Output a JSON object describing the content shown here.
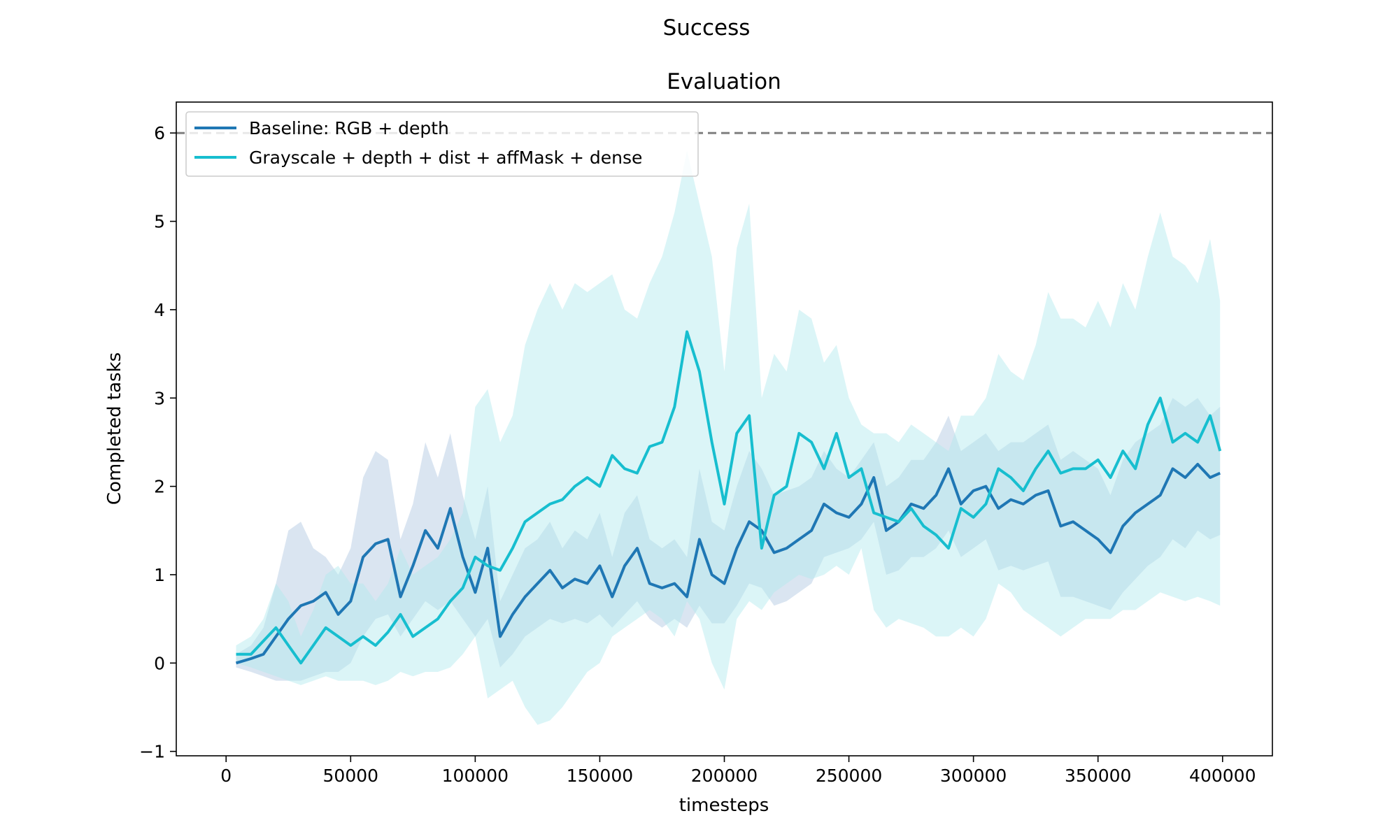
{
  "chart_data": {
    "type": "line",
    "suptitle": "Success",
    "title": "Evaluation",
    "xlabel": "timesteps",
    "ylabel": "Completed tasks",
    "xlim": [
      -20000,
      420000
    ],
    "ylim": [
      -1.05,
      6.35
    ],
    "xticks": [
      0,
      50000,
      100000,
      150000,
      200000,
      250000,
      300000,
      350000,
      400000
    ],
    "xtick_labels": [
      "0",
      "50000",
      "100000",
      "150000",
      "200000",
      "250000",
      "300000",
      "350000",
      "400000"
    ],
    "yticks": [
      -1,
      0,
      1,
      2,
      3,
      4,
      5,
      6
    ],
    "ytick_labels": [
      "−1",
      "0",
      "1",
      "2",
      "3",
      "4",
      "5",
      "6"
    ],
    "grid": false,
    "legend_position": "top-left",
    "reference_line": {
      "y": 6,
      "style": "dashed",
      "color": "#808080"
    },
    "series": [
      {
        "name": "Baseline: RGB + depth",
        "color": "#1f77b4",
        "band_color": "#aec6e0",
        "x": [
          4000,
          10000,
          15000,
          20000,
          25000,
          30000,
          35000,
          40000,
          45000,
          50000,
          55000,
          60000,
          65000,
          70000,
          75000,
          80000,
          85000,
          90000,
          95000,
          100000,
          105000,
          110000,
          115000,
          120000,
          125000,
          130000,
          135000,
          140000,
          145000,
          150000,
          155000,
          160000,
          165000,
          170000,
          175000,
          180000,
          185000,
          190000,
          195000,
          200000,
          205000,
          210000,
          215000,
          220000,
          225000,
          230000,
          235000,
          240000,
          245000,
          250000,
          255000,
          260000,
          265000,
          270000,
          275000,
          280000,
          285000,
          290000,
          295000,
          300000,
          305000,
          310000,
          315000,
          320000,
          325000,
          330000,
          335000,
          340000,
          345000,
          350000,
          355000,
          360000,
          365000,
          370000,
          375000,
          380000,
          385000,
          390000,
          395000,
          399000
        ],
        "values": [
          0.0,
          0.05,
          0.1,
          0.3,
          0.5,
          0.65,
          0.7,
          0.8,
          0.55,
          0.7,
          1.2,
          1.35,
          1.4,
          0.75,
          1.1,
          1.5,
          1.3,
          1.75,
          1.2,
          0.8,
          1.3,
          0.3,
          0.55,
          0.75,
          0.9,
          1.05,
          0.85,
          0.95,
          0.9,
          1.1,
          0.75,
          1.1,
          1.3,
          0.9,
          0.85,
          0.9,
          0.75,
          1.4,
          1.0,
          0.9,
          1.3,
          1.6,
          1.5,
          1.25,
          1.3,
          1.4,
          1.5,
          1.8,
          1.7,
          1.65,
          1.8,
          2.1,
          1.5,
          1.6,
          1.8,
          1.75,
          1.9,
          2.2,
          1.8,
          1.95,
          2.0,
          1.75,
          1.85,
          1.8,
          1.9,
          1.95,
          1.55,
          1.6,
          1.5,
          1.4,
          1.25,
          1.55,
          1.7,
          1.8,
          1.9,
          2.2,
          2.1,
          2.25,
          2.1,
          2.15
        ],
        "lower": [
          -0.05,
          -0.1,
          -0.15,
          -0.2,
          -0.2,
          -0.2,
          -0.15,
          -0.1,
          -0.1,
          0.0,
          0.3,
          0.5,
          0.55,
          0.3,
          0.5,
          0.7,
          0.6,
          0.7,
          0.5,
          0.3,
          0.5,
          -0.05,
          0.1,
          0.3,
          0.4,
          0.5,
          0.45,
          0.5,
          0.45,
          0.55,
          0.4,
          0.55,
          0.7,
          0.5,
          0.4,
          0.5,
          0.4,
          0.65,
          0.45,
          0.45,
          0.65,
          0.9,
          0.85,
          0.65,
          0.7,
          0.8,
          0.9,
          1.2,
          1.25,
          1.3,
          1.4,
          1.6,
          1.0,
          1.05,
          1.2,
          1.2,
          1.3,
          1.5,
          1.2,
          1.3,
          1.4,
          1.05,
          1.1,
          1.05,
          1.1,
          1.15,
          0.75,
          0.75,
          0.7,
          0.65,
          0.6,
          0.8,
          0.95,
          1.1,
          1.2,
          1.4,
          1.3,
          1.5,
          1.4,
          1.45
        ],
        "upper": [
          0.1,
          0.2,
          0.4,
          0.9,
          1.5,
          1.6,
          1.3,
          1.2,
          1.0,
          1.3,
          2.1,
          2.4,
          2.3,
          1.4,
          1.8,
          2.5,
          2.1,
          2.6,
          1.9,
          1.4,
          2.0,
          0.7,
          1.0,
          1.3,
          1.4,
          1.6,
          1.3,
          1.5,
          1.4,
          1.7,
          1.2,
          1.7,
          1.9,
          1.4,
          1.3,
          1.4,
          1.2,
          2.2,
          1.6,
          1.5,
          2.0,
          2.4,
          2.2,
          1.9,
          1.95,
          2.0,
          2.1,
          2.4,
          2.2,
          2.1,
          2.3,
          2.5,
          2.0,
          2.1,
          2.3,
          2.3,
          2.5,
          2.8,
          2.4,
          2.5,
          2.6,
          2.4,
          2.5,
          2.5,
          2.6,
          2.7,
          2.3,
          2.4,
          2.3,
          2.2,
          1.9,
          2.3,
          2.5,
          2.6,
          2.7,
          3.0,
          2.9,
          3.0,
          2.8,
          2.9
        ]
      },
      {
        "name": "Grayscale + depth + dist + affMask + dense",
        "color": "#17becf",
        "band_color": "#b0e8ee",
        "x": [
          4000,
          10000,
          15000,
          20000,
          25000,
          30000,
          35000,
          40000,
          45000,
          50000,
          55000,
          60000,
          65000,
          70000,
          75000,
          80000,
          85000,
          90000,
          95000,
          100000,
          105000,
          110000,
          115000,
          120000,
          125000,
          130000,
          135000,
          140000,
          145000,
          150000,
          155000,
          160000,
          165000,
          170000,
          175000,
          180000,
          185000,
          190000,
          195000,
          200000,
          205000,
          210000,
          215000,
          220000,
          225000,
          230000,
          235000,
          240000,
          245000,
          250000,
          255000,
          260000,
          265000,
          270000,
          275000,
          280000,
          285000,
          290000,
          295000,
          300000,
          305000,
          310000,
          315000,
          320000,
          325000,
          330000,
          335000,
          340000,
          345000,
          350000,
          355000,
          360000,
          365000,
          370000,
          375000,
          380000,
          385000,
          390000,
          395000,
          399000
        ],
        "values": [
          0.1,
          0.1,
          0.25,
          0.4,
          0.2,
          0.0,
          0.2,
          0.4,
          0.3,
          0.2,
          0.3,
          0.2,
          0.35,
          0.55,
          0.3,
          0.4,
          0.5,
          0.7,
          0.85,
          1.2,
          1.1,
          1.05,
          1.3,
          1.6,
          1.7,
          1.8,
          1.85,
          2.0,
          2.1,
          2.0,
          2.35,
          2.2,
          2.15,
          2.45,
          2.5,
          2.9,
          3.75,
          3.3,
          2.5,
          1.8,
          2.6,
          2.8,
          1.3,
          1.9,
          2.0,
          2.6,
          2.5,
          2.2,
          2.6,
          2.1,
          2.2,
          1.7,
          1.65,
          1.6,
          1.75,
          1.55,
          1.45,
          1.3,
          1.75,
          1.65,
          1.8,
          2.2,
          2.1,
          1.95,
          2.2,
          2.4,
          2.15,
          2.2,
          2.2,
          2.3,
          2.1,
          2.4,
          2.2,
          2.7,
          3.0,
          2.5,
          2.6,
          2.5,
          2.8,
          2.4
        ],
        "lower": [
          0.0,
          -0.05,
          -0.1,
          -0.15,
          -0.2,
          -0.25,
          -0.2,
          -0.15,
          -0.2,
          -0.2,
          -0.2,
          -0.25,
          -0.2,
          -0.1,
          -0.15,
          -0.1,
          -0.1,
          -0.05,
          0.1,
          0.3,
          -0.4,
          -0.3,
          -0.2,
          -0.5,
          -0.7,
          -0.65,
          -0.5,
          -0.3,
          -0.1,
          0.0,
          0.3,
          0.4,
          0.5,
          0.6,
          0.5,
          0.3,
          0.7,
          0.5,
          0.0,
          -0.3,
          0.5,
          0.7,
          0.6,
          0.8,
          0.9,
          1.0,
          0.95,
          1.0,
          1.1,
          1.0,
          1.3,
          0.6,
          0.4,
          0.5,
          0.45,
          0.4,
          0.3,
          0.3,
          0.4,
          0.3,
          0.5,
          0.9,
          0.8,
          0.6,
          0.5,
          0.4,
          0.3,
          0.4,
          0.5,
          0.5,
          0.5,
          0.6,
          0.6,
          0.7,
          0.8,
          0.75,
          0.7,
          0.75,
          0.7,
          0.65
        ],
        "upper": [
          0.2,
          0.3,
          0.5,
          0.9,
          0.7,
          0.3,
          0.6,
          1.0,
          1.1,
          0.9,
          0.9,
          0.7,
          0.9,
          1.3,
          1.0,
          1.1,
          1.2,
          1.4,
          1.7,
          2.9,
          3.1,
          2.5,
          2.8,
          3.6,
          4.0,
          4.3,
          4.0,
          4.3,
          4.2,
          4.3,
          4.4,
          4.0,
          3.9,
          4.3,
          4.6,
          5.1,
          5.8,
          5.2,
          4.6,
          3.3,
          4.7,
          5.2,
          3.0,
          3.5,
          3.3,
          4.0,
          3.9,
          3.4,
          3.6,
          3.0,
          2.7,
          2.6,
          2.6,
          2.5,
          2.7,
          2.6,
          2.5,
          2.4,
          2.8,
          2.8,
          3.0,
          3.5,
          3.3,
          3.2,
          3.6,
          4.2,
          3.9,
          3.9,
          3.8,
          4.1,
          3.8,
          4.3,
          4.0,
          4.6,
          5.1,
          4.6,
          4.5,
          4.3,
          4.8,
          4.1
        ]
      }
    ]
  }
}
